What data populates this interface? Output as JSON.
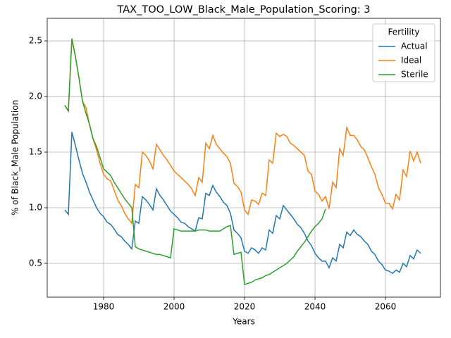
{
  "chart_data": {
    "type": "line",
    "title": "TAX_TOO_LOW_Black_Male_Population_Scoring: 3",
    "x_label": "Years",
    "y_label": "% of Black_Male Population",
    "legend_title": "Fertility",
    "legend": "upper right",
    "grid": true,
    "x": [
      1969,
      1970,
      1971,
      1972,
      1973,
      1974,
      1975,
      1976,
      1977,
      1978,
      1979,
      1980,
      1981,
      1982,
      1983,
      1984,
      1985,
      1986,
      1987,
      1988,
      1989,
      1990,
      1991,
      1992,
      1993,
      1994,
      1995,
      1996,
      1997,
      1998,
      1999,
      2000,
      2001,
      2002,
      2003,
      2004,
      2005,
      2006,
      2007,
      2008,
      2009,
      2010,
      2011,
      2012,
      2013,
      2014,
      2015,
      2016,
      2017,
      2018,
      2019,
      2020,
      2021,
      2022,
      2023,
      2024,
      2025,
      2026,
      2027,
      2028,
      2029,
      2030,
      2031,
      2032,
      2033,
      2034,
      2035,
      2036,
      2037,
      2038,
      2039,
      2040,
      2041,
      2042,
      2043,
      2044,
      2045,
      2046,
      2047,
      2048,
      2049,
      2050,
      2051,
      2052,
      2053,
      2054,
      2055,
      2056,
      2057,
      2058,
      2059,
      2060,
      2061,
      2062,
      2063,
      2064,
      2065,
      2066,
      2067,
      2068,
      2069,
      2070
    ],
    "series": [
      {
        "name": "Actual",
        "color": "#1f77b4",
        "values": [
          0.98,
          0.94,
          1.68,
          1.56,
          1.43,
          1.31,
          1.23,
          1.14,
          1.07,
          1.0,
          0.95,
          0.92,
          0.87,
          0.85,
          0.81,
          0.76,
          0.74,
          0.7,
          0.67,
          0.63,
          0.88,
          0.86,
          1.1,
          1.07,
          1.03,
          0.98,
          1.17,
          1.11,
          1.07,
          1.02,
          0.97,
          0.94,
          0.91,
          0.87,
          0.86,
          0.83,
          0.81,
          0.79,
          0.91,
          0.9,
          1.13,
          1.11,
          1.2,
          1.14,
          1.1,
          1.05,
          1.02,
          0.95,
          0.8,
          0.77,
          0.73,
          0.61,
          0.59,
          0.64,
          0.62,
          0.59,
          0.64,
          0.62,
          0.8,
          0.77,
          0.93,
          0.9,
          1.02,
          0.98,
          0.94,
          0.9,
          0.85,
          0.82,
          0.77,
          0.7,
          0.66,
          0.59,
          0.55,
          0.52,
          0.52,
          0.46,
          0.55,
          0.52,
          0.67,
          0.64,
          0.78,
          0.75,
          0.8,
          0.76,
          0.74,
          0.7,
          0.67,
          0.61,
          0.58,
          0.52,
          0.49,
          0.44,
          0.43,
          0.41,
          0.44,
          0.42,
          0.5,
          0.47,
          0.57,
          0.54,
          0.62,
          0.59
        ]
      },
      {
        "name": "Ideal",
        "color": "#ff7f0e",
        "values": [
          1.92,
          1.87,
          2.52,
          2.36,
          2.17,
          1.96,
          1.9,
          1.75,
          1.62,
          1.52,
          1.4,
          1.3,
          1.26,
          1.24,
          1.16,
          1.07,
          1.02,
          0.95,
          0.9,
          0.86,
          1.21,
          1.18,
          1.5,
          1.47,
          1.42,
          1.35,
          1.57,
          1.52,
          1.47,
          1.43,
          1.38,
          1.33,
          1.3,
          1.27,
          1.24,
          1.21,
          1.17,
          1.11,
          1.27,
          1.23,
          1.58,
          1.53,
          1.65,
          1.57,
          1.53,
          1.49,
          1.46,
          1.4,
          1.22,
          1.19,
          1.14,
          0.98,
          0.94,
          1.07,
          1.06,
          1.03,
          1.13,
          1.11,
          1.43,
          1.4,
          1.67,
          1.64,
          1.66,
          1.64,
          1.58,
          1.56,
          1.53,
          1.5,
          1.47,
          1.33,
          1.3,
          1.15,
          1.12,
          1.06,
          1.1,
          0.99,
          1.23,
          1.18,
          1.53,
          1.47,
          1.72,
          1.65,
          1.65,
          1.61,
          1.55,
          1.52,
          1.45,
          1.37,
          1.3,
          1.18,
          1.12,
          1.04,
          1.04,
          0.99,
          1.12,
          1.07,
          1.34,
          1.28,
          1.51,
          1.42,
          1.5,
          1.4
        ]
      },
      {
        "name": "Sterile",
        "color": "#2ca02c",
        "values": [
          1.92,
          1.87,
          2.52,
          2.36,
          2.17,
          1.96,
          1.85,
          1.75,
          1.62,
          1.55,
          1.45,
          1.35,
          1.32,
          1.29,
          1.23,
          1.18,
          1.13,
          1.08,
          1.04,
          1.0,
          0.65,
          0.63,
          0.62,
          0.61,
          0.6,
          0.59,
          0.58,
          0.58,
          0.57,
          0.56,
          0.55,
          0.81,
          0.8,
          0.79,
          0.79,
          0.79,
          0.79,
          0.79,
          0.8,
          0.8,
          0.8,
          0.79,
          0.79,
          0.79,
          0.79,
          0.81,
          0.83,
          0.84,
          0.58,
          0.59,
          0.6,
          0.31,
          0.32,
          0.33,
          0.35,
          0.36,
          0.37,
          0.39,
          0.4,
          0.42,
          0.44,
          0.46,
          0.48,
          0.5,
          0.53,
          0.56,
          0.61,
          0.65,
          0.69,
          0.74,
          0.79,
          0.83,
          0.86,
          0.9,
          0.99,
          null,
          null,
          null,
          null,
          null,
          null,
          null,
          null,
          null,
          null,
          null,
          null,
          null,
          null,
          null,
          null,
          null,
          null,
          null,
          null,
          null,
          null,
          null,
          null,
          null,
          null,
          null
        ]
      }
    ],
    "xlim": [
      1964,
      2075.6
    ],
    "xticks": [
      1980,
      2000,
      2020,
      2040,
      2060
    ],
    "ylim": [
      0.196,
      2.703
    ],
    "yticks": [
      0.5,
      {
        "value": 1,
        "label": "1.0"
      },
      1.5,
      {
        "value": 2,
        "label": "2.0"
      },
      2.5
    ]
  }
}
